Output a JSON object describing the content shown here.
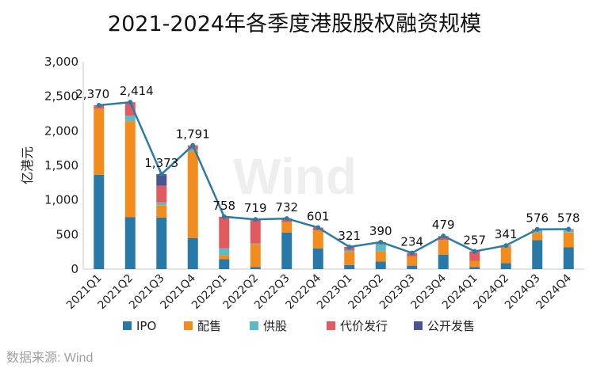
{
  "chart_data": {
    "type": "bar",
    "title": "2021-2024年各季度港股股权融资规模",
    "ylabel": "亿港元",
    "xlabel": "",
    "ylim": [
      0,
      3000
    ],
    "yticks": [
      0,
      500,
      1000,
      1500,
      2000,
      2500,
      3000
    ],
    "ytick_labels": [
      "0",
      "500",
      "1,000",
      "1,500",
      "2,000",
      "2,500",
      "3,000"
    ],
    "categories": [
      "2021Q1",
      "2021Q2",
      "2021Q3",
      "2021Q4",
      "2022Q1",
      "2022Q2",
      "2022Q3",
      "2022Q4",
      "2023Q1",
      "2023Q2",
      "2023Q3",
      "2023Q4",
      "2024Q1",
      "2024Q2",
      "2024Q3",
      "2024Q4"
    ],
    "stacked": true,
    "series": [
      {
        "name": "IPO",
        "color": "#2878a8",
        "values": [
          1365,
          750,
          745,
          450,
          145,
          30,
          530,
          300,
          60,
          110,
          50,
          210,
          30,
          85,
          420,
          315
        ]
      },
      {
        "name": "配售",
        "color": "#f28c1c",
        "values": [
          955,
          1390,
          180,
          1250,
          60,
          330,
          150,
          260,
          190,
          150,
          130,
          210,
          90,
          245,
          105,
          215
        ]
      },
      {
        "name": "供股",
        "color": "#5bbcc7",
        "values": [
          0,
          80,
          40,
          30,
          95,
          10,
          0,
          0,
          20,
          100,
          0,
          0,
          0,
          0,
          30,
          30
        ]
      },
      {
        "name": "代价发行",
        "color": "#e05a60",
        "values": [
          50,
          194,
          240,
          61,
          458,
          349,
          52,
          41,
          51,
          30,
          54,
          59,
          137,
          11,
          21,
          18
        ]
      },
      {
        "name": "公开发售",
        "color": "#4b5590",
        "values": [
          0,
          0,
          168,
          0,
          0,
          0,
          0,
          0,
          0,
          0,
          0,
          0,
          0,
          0,
          0,
          0
        ]
      }
    ],
    "total": {
      "name": "总计",
      "color": "#2c7ba3",
      "values": [
        2370,
        2414,
        1373,
        1791,
        758,
        719,
        732,
        601,
        321,
        390,
        234,
        479,
        257,
        341,
        576,
        578
      ]
    },
    "total_labels": [
      "2,370",
      "2,414",
      "1,373",
      "1,791",
      "758",
      "719",
      "732",
      "601",
      "321",
      "390",
      "234",
      "479",
      "257",
      "341",
      "576",
      "578"
    ],
    "legend_position": "bottom",
    "grid": false,
    "watermark": "Wind"
  },
  "source": "数据来源: Wind"
}
